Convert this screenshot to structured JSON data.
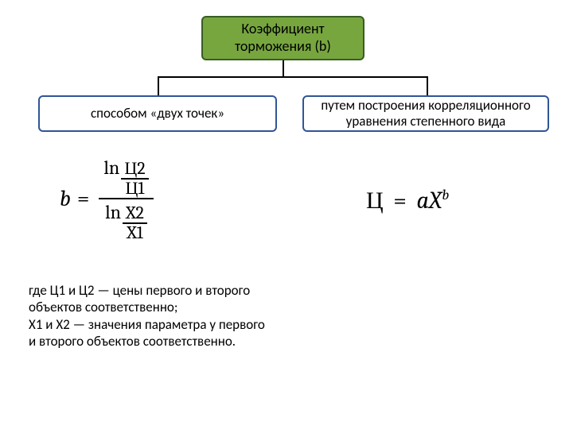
{
  "colors": {
    "top_box_bg": "#77a63f",
    "top_box_border": "#385d23",
    "branch_border": "#2f5597",
    "background": "#ffffff",
    "text": "#000000"
  },
  "top": {
    "title": "Коэффициент торможения (b)"
  },
  "left": {
    "label": "способом «двух точек»"
  },
  "right": {
    "label": "путем построения корреляционного уравнения степенного вида"
  },
  "formula_left": {
    "lhs": "b",
    "eq": "=",
    "ln": "ln",
    "num_top": "Ц2",
    "num_bot": "Ц1",
    "den_top": "X2",
    "den_bot": "X1"
  },
  "formula_right": {
    "lhs": "Ц",
    "eq": "=",
    "a": "a",
    "X": "X",
    "exp": "b"
  },
  "description": {
    "line1": "где Ц1 и Ц2 — цены первого и второго",
    "line2": "объектов соответственно;",
    "line3": "X1 и X2 — значения параметра у первого",
    "line4": "и второго объектов соответственно."
  }
}
